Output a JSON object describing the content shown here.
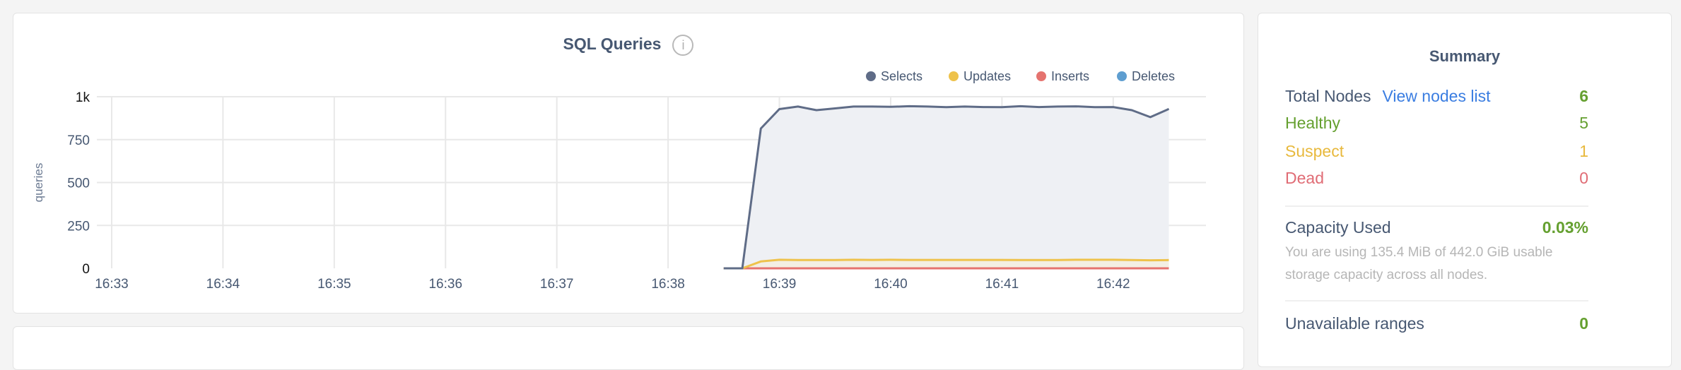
{
  "colors": {
    "text": "#475872",
    "green": "#65a030",
    "blue": "#3a7de1",
    "yellow": "#e8b93d",
    "red": "#e06c75",
    "grid": "#e8e8e8",
    "fill": "#eef0f4"
  },
  "chart_data": {
    "type": "line",
    "title": "SQL Queries",
    "info_icon": "info-circle-icon",
    "ylabel": "queries",
    "xlabel": "",
    "yticks": [
      {
        "v": 0,
        "label": "0"
      },
      {
        "v": 250,
        "label": "250"
      },
      {
        "v": 500,
        "label": "500"
      },
      {
        "v": 750,
        "label": "750"
      },
      {
        "v": 1000,
        "label": "1k"
      }
    ],
    "ylim": [
      0,
      1000
    ],
    "xticks": [
      "16:33",
      "16:34",
      "16:35",
      "16:36",
      "16:37",
      "16:38",
      "16:39",
      "16:40",
      "16:41",
      "16:42"
    ],
    "xlim": [
      "16:32:52",
      "16:42:50"
    ],
    "grid": true,
    "legend_position": "top-right",
    "x": [
      "16:38:30",
      "16:38:40",
      "16:38:50",
      "16:39:00",
      "16:39:10",
      "16:39:20",
      "16:39:30",
      "16:39:40",
      "16:39:50",
      "16:40:00",
      "16:40:10",
      "16:40:20",
      "16:40:30",
      "16:40:40",
      "16:40:50",
      "16:41:00",
      "16:41:10",
      "16:41:20",
      "16:41:30",
      "16:41:40",
      "16:41:50",
      "16:42:00",
      "16:42:10",
      "16:42:20",
      "16:42:30"
    ],
    "series": [
      {
        "name": "Selects",
        "color": "#5f6c87",
        "values": [
          0,
          0,
          815,
          928,
          943,
          922,
          932,
          943,
          943,
          941,
          945,
          943,
          939,
          943,
          940,
          939,
          945,
          940,
          943,
          944,
          939,
          940,
          922,
          881,
          929
        ]
      },
      {
        "name": "Updates",
        "color": "#eec24b",
        "values": [
          0,
          0,
          40,
          50,
          48,
          48,
          48,
          50,
          49,
          50,
          49,
          49,
          49,
          49,
          49,
          49,
          48,
          48,
          48,
          50,
          50,
          50,
          48,
          47,
          48
        ]
      },
      {
        "name": "Inserts",
        "color": "#e5736f",
        "values": [
          0,
          0,
          0,
          0,
          0,
          0,
          0,
          0,
          0,
          0,
          0,
          0,
          0,
          0,
          0,
          0,
          0,
          0,
          0,
          0,
          0,
          0,
          0,
          0,
          0
        ]
      },
      {
        "name": "Deletes",
        "color": "#5e9ed0",
        "values": [
          0,
          0,
          0,
          0,
          0,
          0,
          0,
          0,
          0,
          0,
          0,
          0,
          0,
          0,
          0,
          0,
          0,
          0,
          0,
          0,
          0,
          0,
          0,
          0,
          0
        ]
      }
    ]
  },
  "summary": {
    "title": "Summary",
    "total_nodes_label": "Total Nodes",
    "view_nodes_link": "View nodes list",
    "total_nodes": "6",
    "healthy_label": "Healthy",
    "healthy": "5",
    "suspect_label": "Suspect",
    "suspect": "1",
    "dead_label": "Dead",
    "dead": "0",
    "capacity_label": "Capacity Used",
    "capacity": "0.03%",
    "capacity_desc": "You are using 135.4 MiB of 442.0 GiB usable storage capacity across all nodes.",
    "unavailable_label": "Unavailable ranges",
    "unavailable": "0"
  }
}
